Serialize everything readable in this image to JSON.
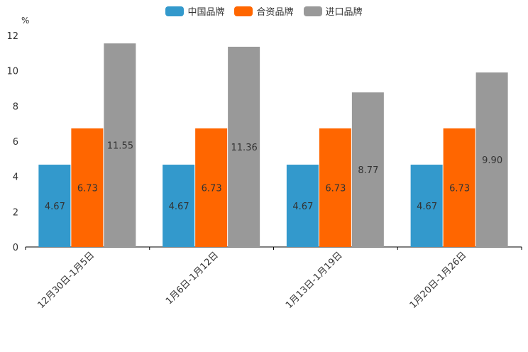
{
  "chart_data": {
    "type": "bar",
    "unit": "%",
    "categories": [
      "12月30日-1月5日",
      "1月6日-1月12日",
      "1月13日-1月19日",
      "1月20日-1月26日"
    ],
    "series": [
      {
        "name": "中国品牌",
        "color": "#3399cc",
        "values": [
          4.67,
          4.67,
          4.67,
          4.67
        ],
        "labels": [
          "4.67",
          "4.67",
          "4.67",
          "4.67"
        ]
      },
      {
        "name": "合资品牌",
        "color": "#ff6600",
        "values": [
          6.73,
          6.73,
          6.73,
          6.73
        ],
        "labels": [
          "6.73",
          "6.73",
          "6.73",
          "6.73"
        ]
      },
      {
        "name": "进口品牌",
        "color": "#999999",
        "values": [
          11.55,
          11.36,
          8.77,
          9.9
        ],
        "labels": [
          "11.55",
          "11.36",
          "8.77",
          "9.90"
        ]
      }
    ],
    "ylim": [
      0,
      12
    ],
    "yticks": [
      0,
      2,
      4,
      6,
      8,
      10,
      12
    ],
    "ytick_labels": [
      "0",
      "2",
      "4",
      "6",
      "8",
      "10",
      "12"
    ],
    "legend_position": "top-center",
    "grid": false
  }
}
